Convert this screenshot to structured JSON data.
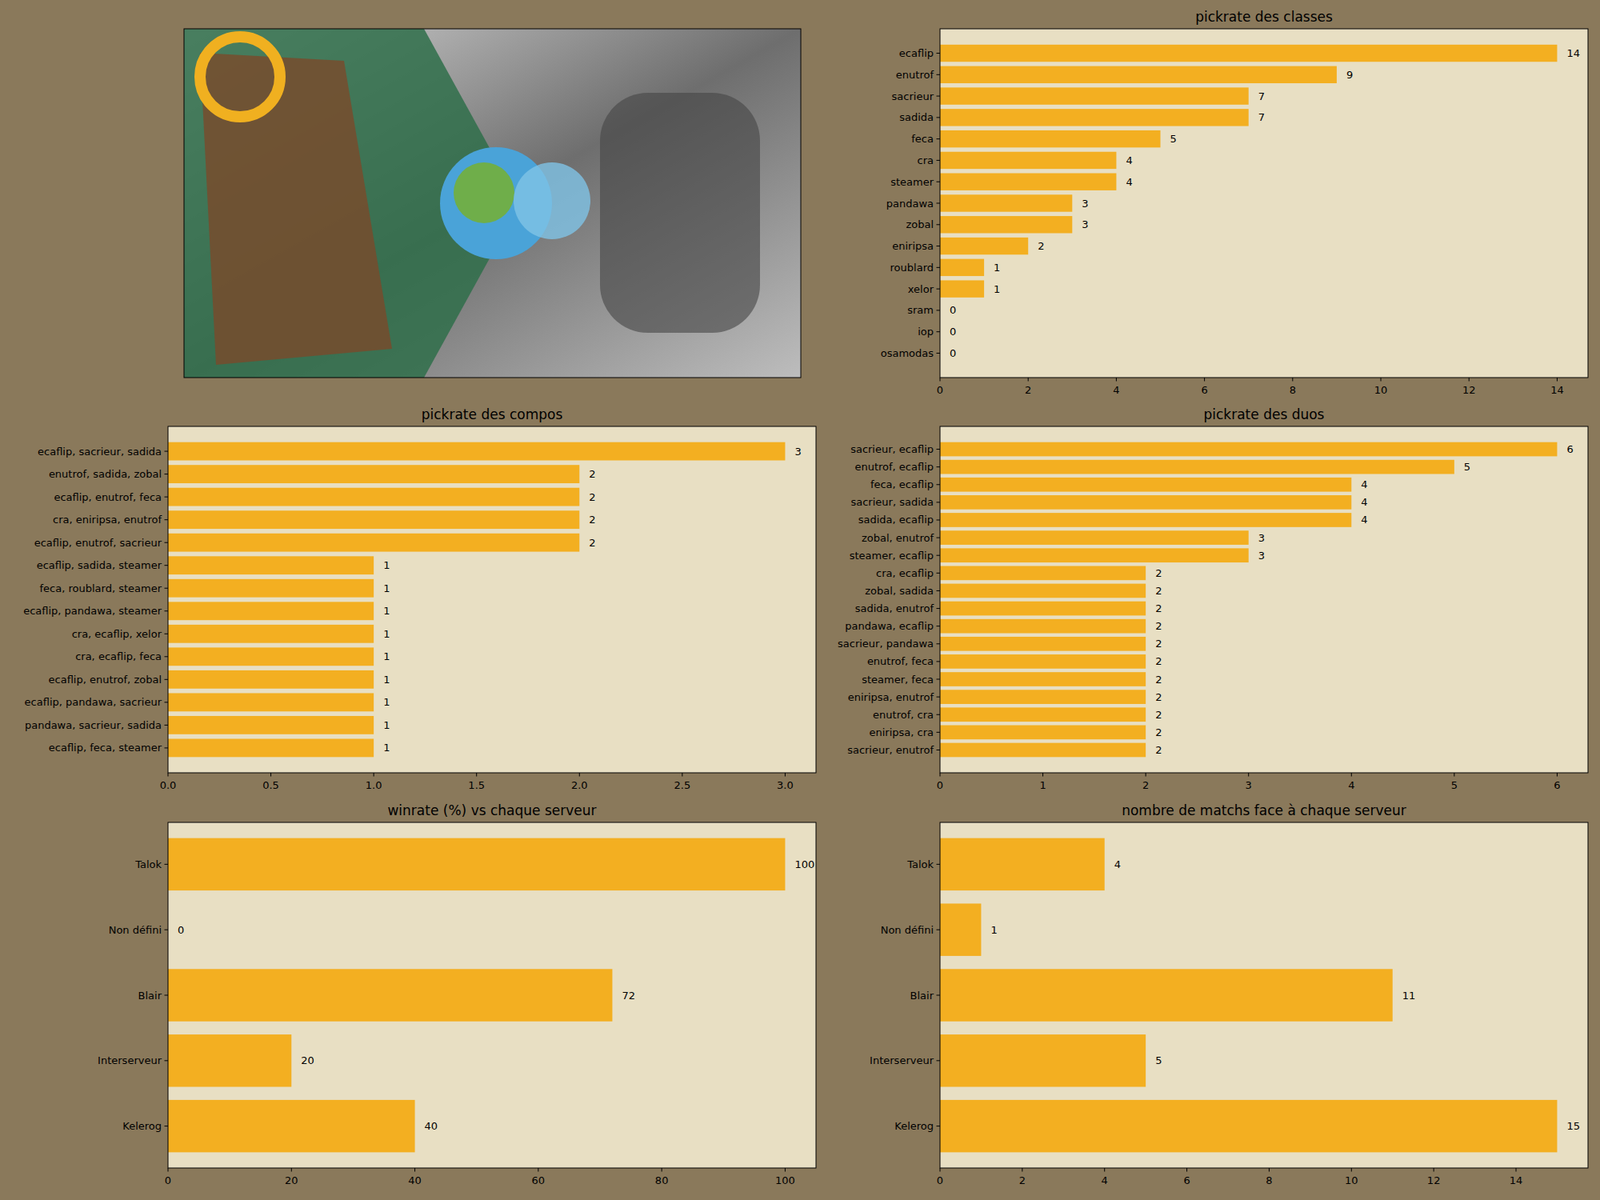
{
  "chart_data": [
    {
      "type": "bar",
      "orientation": "horizontal",
      "title": "pickrate des classes",
      "categories": [
        "ecaflip",
        "enutrof",
        "sacrieur",
        "sadida",
        "feca",
        "cra",
        "steamer",
        "pandawa",
        "zobal",
        "eniripsa",
        "roublard",
        "xelor",
        "sram",
        "iop",
        "osamodas"
      ],
      "values": [
        14,
        9,
        7,
        7,
        5,
        4,
        4,
        3,
        3,
        2,
        1,
        1,
        0,
        0,
        0
      ],
      "color": "#f3af21",
      "xlim": [
        0,
        14.7
      ],
      "xticks": [
        0,
        2,
        4,
        6,
        8,
        10,
        12,
        14
      ],
      "grid": false,
      "data_labels": true
    },
    {
      "type": "bar",
      "orientation": "horizontal",
      "title": "pickrate des compos",
      "categories": [
        "ecaflip, sacrieur, sadida",
        "enutrof, sadida, zobal",
        "ecaflip, enutrof, feca",
        "cra, eniripsa, enutrof",
        "ecaflip, enutrof, sacrieur",
        "ecaflip, sadida, steamer",
        "feca, roublard, steamer",
        "ecaflip, pandawa, steamer",
        "cra, ecaflip, xelor",
        "cra, ecaflip, feca",
        "ecaflip, enutrof, zobal",
        "ecaflip, pandawa, sacrieur",
        "pandawa, sacrieur, sadida",
        "ecaflip, feca, steamer"
      ],
      "values": [
        3,
        2,
        2,
        2,
        2,
        1,
        1,
        1,
        1,
        1,
        1,
        1,
        1,
        1
      ],
      "color": "#f3af21",
      "xlim": [
        0,
        3.15
      ],
      "xticks": [
        {
          "value": 0,
          "label": "0.0"
        },
        0.5,
        {
          "value": 1,
          "label": "1.0"
        },
        1.5,
        {
          "value": 2,
          "label": "2.0"
        },
        2.5,
        {
          "value": 3,
          "label": "3.0"
        }
      ],
      "grid": false,
      "data_labels": true
    },
    {
      "type": "bar",
      "orientation": "horizontal",
      "title": "pickrate des duos",
      "categories": [
        "sacrieur, ecaflip",
        "enutrof, ecaflip",
        "feca, ecaflip",
        "sacrieur, sadida",
        "sadida, ecaflip",
        "zobal, enutrof",
        "steamer, ecaflip",
        "cra, ecaflip",
        "zobal, sadida",
        "sadida, enutrof",
        "pandawa, ecaflip",
        "sacrieur, pandawa",
        "enutrof, feca",
        "steamer, feca",
        "eniripsa, enutrof",
        "enutrof, cra",
        "eniripsa, cra",
        "sacrieur, enutrof"
      ],
      "values": [
        6,
        5,
        4,
        4,
        4,
        3,
        3,
        2,
        2,
        2,
        2,
        2,
        2,
        2,
        2,
        2,
        2,
        2
      ],
      "color": "#f3af21",
      "xlim": [
        0,
        6.3
      ],
      "xticks": [
        0,
        1,
        2,
        3,
        4,
        5,
        6
      ],
      "grid": false,
      "data_labels": true
    },
    {
      "type": "bar",
      "orientation": "horizontal",
      "title": "winrate (%) vs chaque serveur",
      "categories": [
        "Talok",
        "Non défini",
        "Blair",
        "Interserveur",
        "Kelerog"
      ],
      "values": [
        100,
        0,
        72,
        20,
        40
      ],
      "color": "#f3af21",
      "xlim": [
        0,
        105
      ],
      "xticks": [
        0,
        20,
        40,
        60,
        80,
        100
      ],
      "grid": false,
      "data_labels": true
    },
    {
      "type": "bar",
      "orientation": "horizontal",
      "title": "nombre de matchs face à chaque serveur",
      "categories": [
        "Talok",
        "Non défini",
        "Blair",
        "Interserveur",
        "Kelerog"
      ],
      "values": [
        4,
        1,
        11,
        5,
        15
      ],
      "color": "#f3af21",
      "xlim": [
        0,
        15.75
      ],
      "xticks": [
        0,
        2,
        4,
        6,
        8,
        10,
        12,
        14
      ],
      "grid": false,
      "data_labels": true
    }
  ]
}
